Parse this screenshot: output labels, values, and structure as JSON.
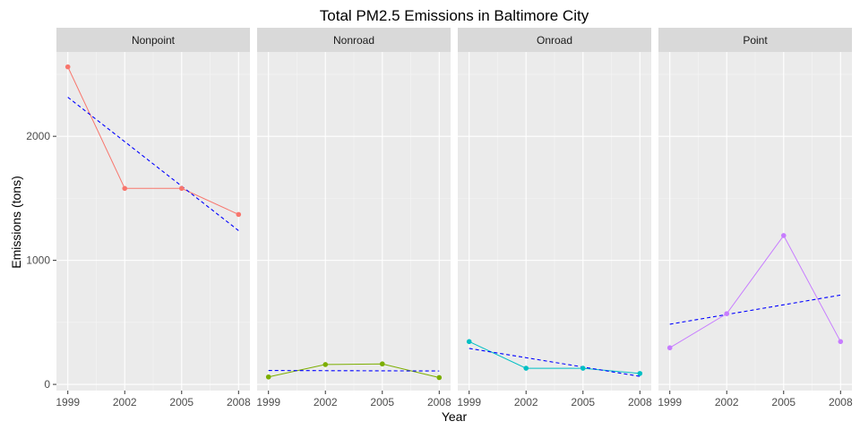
{
  "chart_data": {
    "type": "line",
    "title": "Total PM2.5 Emissions in Baltimore City",
    "xlabel": "Year",
    "ylabel": "Emissions (tons)",
    "x": [
      1999,
      2002,
      2005,
      2008
    ],
    "x_tick_labels": [
      "1999",
      "2002",
      "2005",
      "2008"
    ],
    "y_ticks": [
      0,
      1000,
      2000
    ],
    "y_tick_labels": [
      "0",
      "1000",
      "2000"
    ],
    "ylim": [
      -50,
      2680
    ],
    "xlim": [
      1998.4,
      2008.6
    ],
    "grid": true,
    "trend_line_color": "#0000ff",
    "panels": [
      {
        "name": "Nonpoint",
        "color": "#f8766d",
        "values": [
          2560,
          1580,
          1580,
          1370
        ],
        "trend": [
          2315,
          1240
        ]
      },
      {
        "name": "Nonroad",
        "color": "#7cae00",
        "values": [
          60,
          160,
          165,
          55
        ],
        "trend": [
          112,
          108
        ]
      },
      {
        "name": "Onroad",
        "color": "#00bfc4",
        "values": [
          345,
          130,
          130,
          88
        ],
        "trend": [
          290,
          65
        ]
      },
      {
        "name": "Point",
        "color": "#c77cff",
        "values": [
          295,
          570,
          1200,
          345
        ],
        "trend": [
          485,
          720
        ]
      }
    ]
  }
}
